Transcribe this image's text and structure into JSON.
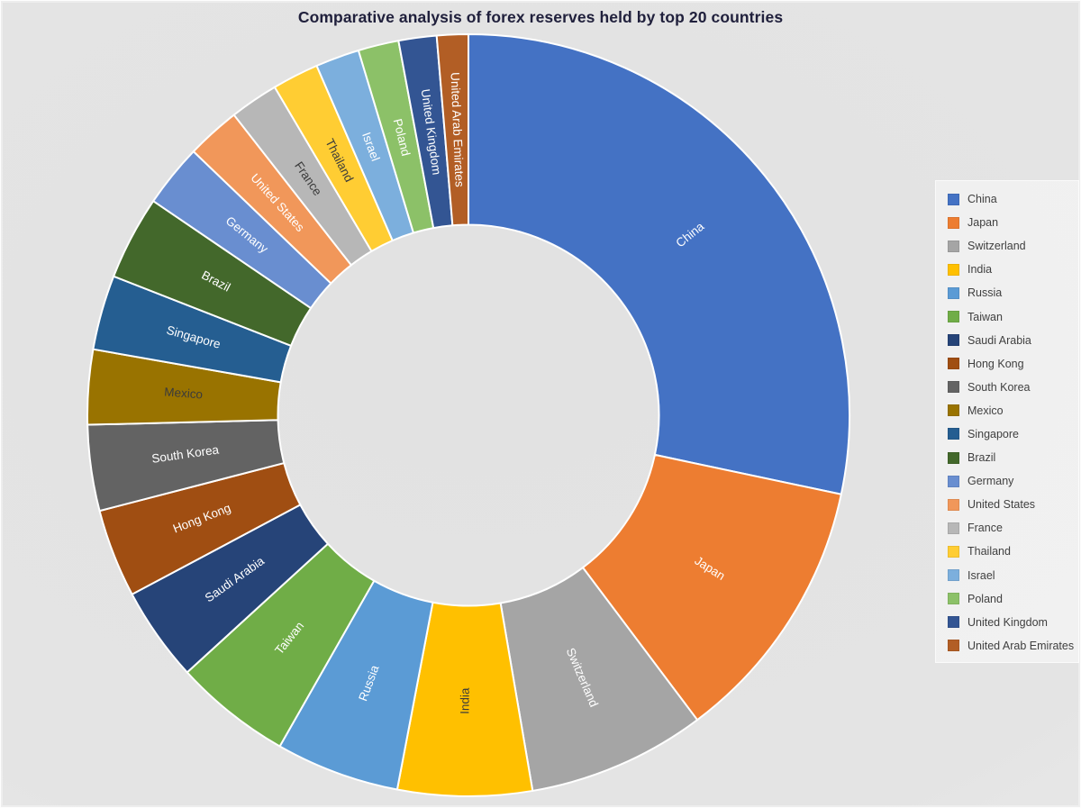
{
  "chart_data": {
    "type": "pie",
    "subtype": "donut",
    "title": "Comparative analysis of forex reserves held by top 20 countries",
    "unit": "percent share of top-20 total (estimated from segment angles)",
    "legend_position": "right",
    "start_angle_deg": 0,
    "direction": "clockwise",
    "donut_hole_ratio": 0.5,
    "categories": [
      "China",
      "Japan",
      "Switzerland",
      "India",
      "Russia",
      "Taiwan",
      "Saudi Arabia",
      "Hong Kong",
      "South Korea",
      "Mexico",
      "Singapore",
      "Brazil",
      "Germany",
      "United States",
      "France",
      "Thailand",
      "Israel",
      "Poland",
      "United Kingdom",
      "United Arab Emirates"
    ],
    "values": [
      28.33,
      11.42,
      7.56,
      5.69,
      5.25,
      4.97,
      4.0,
      3.75,
      3.64,
      3.17,
      3.17,
      3.56,
      2.67,
      2.28,
      2.06,
      1.97,
      1.86,
      1.72,
      1.61,
      1.33
    ],
    "colors": [
      "#4472C4",
      "#ED7D31",
      "#A5A5A5",
      "#FFC000",
      "#5B9BD5",
      "#70AD47",
      "#264478",
      "#A04E12",
      "#636363",
      "#997300",
      "#255E91",
      "#43682B",
      "#698ED0",
      "#F1975A",
      "#B7B7B7",
      "#FFCD33",
      "#7CAFDD",
      "#8CC168",
      "#335593",
      "#B25E25"
    ],
    "slice_label_colors": [
      "#FFFFFF",
      "#FFFFFF",
      "#FFFFFF",
      "#3B3B3B",
      "#FFFFFF",
      "#FFFFFF",
      "#FFFFFF",
      "#FFFFFF",
      "#FFFFFF",
      "#3B3B3B",
      "#FFFFFF",
      "#FFFFFF",
      "#FFFFFF",
      "#FFFFFF",
      "#3B3B3B",
      "#3B3B3B",
      "#FFFFFF",
      "#FFFFFF",
      "#FFFFFF",
      "#FFFFFF"
    ]
  },
  "colors": {
    "title_text": "#20203C",
    "legend_text": "#3F3F3F",
    "slice_border": "#FFFFFF"
  }
}
